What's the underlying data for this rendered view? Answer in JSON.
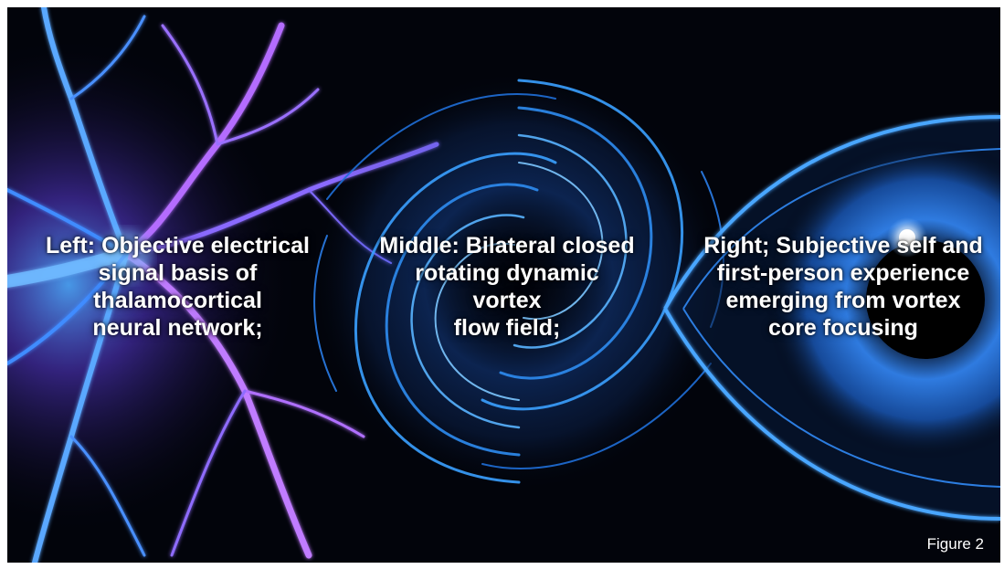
{
  "colors": {
    "background": "#02040b",
    "neuron_blue": "#2f8cff",
    "neuron_violet": "#b56cff",
    "vortex_blue": "#3aa0ff",
    "eye_glow": "#ffffff"
  },
  "captions": {
    "left": [
      "Left: Objective electrical",
      "signal basis of",
      "thalamocortical",
      "neural network;"
    ],
    "middle": [
      "Middle: Bilateral closed",
      "rotating dynamic",
      "vortex",
      "flow field;"
    ],
    "right": [
      "Right; Subjective self and",
      "first-person experience",
      "emerging from vortex",
      "core focusing"
    ]
  },
  "figure_label": "Figure 2"
}
